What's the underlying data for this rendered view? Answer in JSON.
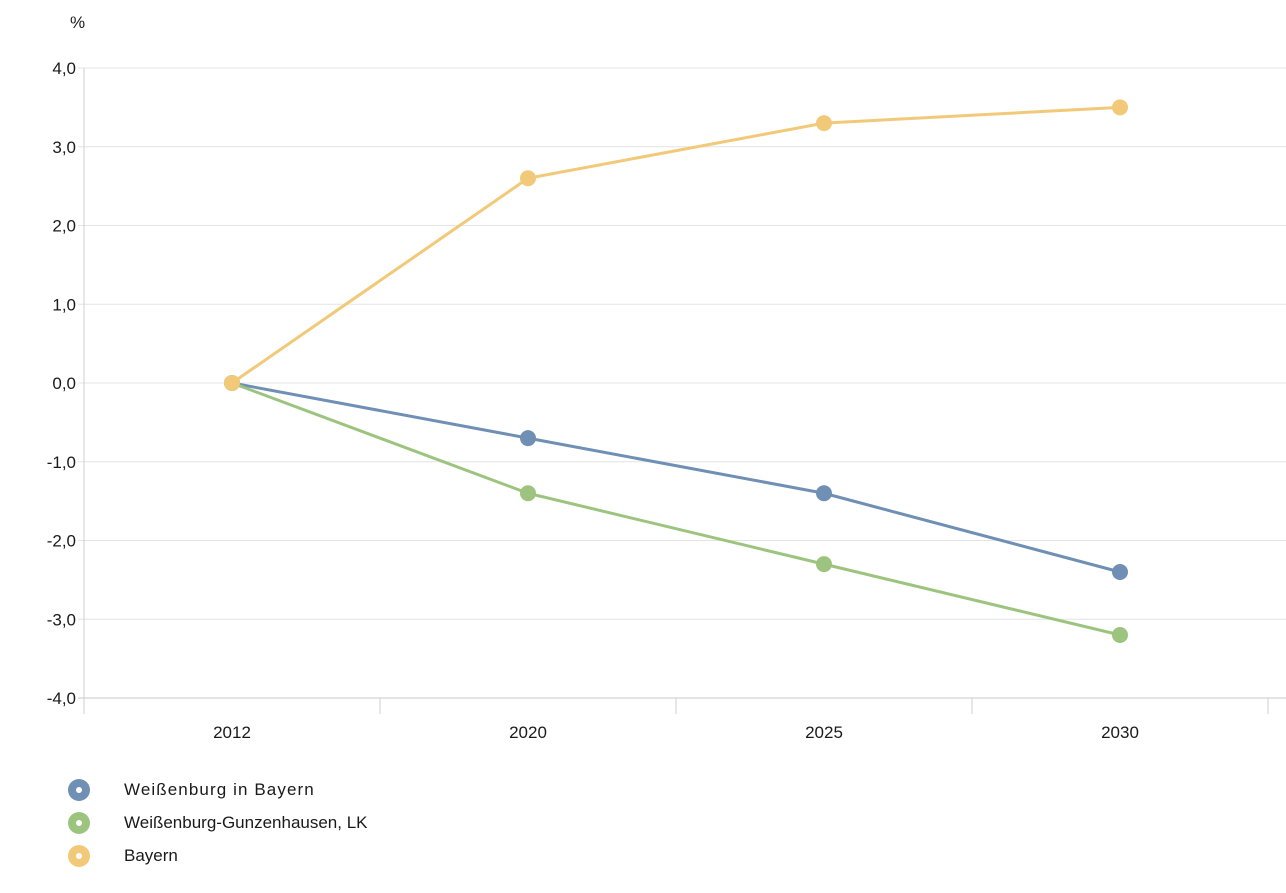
{
  "chart_data": {
    "type": "line",
    "title": "",
    "xlabel": "",
    "ylabel": "%",
    "categories": [
      "2012",
      "2020",
      "2025",
      "2030"
    ],
    "ylim": [
      -4,
      4
    ],
    "yticks": [
      4,
      3,
      2,
      1,
      0,
      -1,
      -2,
      -3,
      -4
    ],
    "ytick_labels": [
      "4,0",
      "3,0",
      "2,0",
      "1,0",
      "0,0",
      "-1,0",
      "-2,0",
      "-3,0",
      "-4,0"
    ],
    "grid": true,
    "legend_position": "bottom-left",
    "series": [
      {
        "name": "Weißenburg in Bayern",
        "color": "#6f8fb4",
        "values": [
          0.0,
          -0.7,
          -1.4,
          -2.4
        ]
      },
      {
        "name": "Weißenburg-Gunzenhausen, LK",
        "color": "#9cc47e",
        "values": [
          0.0,
          -1.4,
          -2.3,
          -3.2
        ]
      },
      {
        "name": "Bayern",
        "color": "#f1c979",
        "values": [
          0.0,
          2.6,
          3.3,
          3.5
        ]
      }
    ]
  }
}
